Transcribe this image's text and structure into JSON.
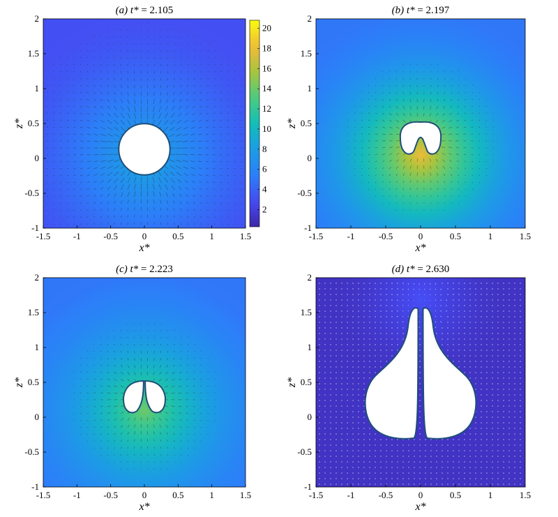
{
  "chart_data": [
    {
      "type": "heatmap",
      "title": "(a) t* = 2.105",
      "title_parts": {
        "tag": "(a) ",
        "var": "t*",
        "eq": " = 2.105"
      },
      "xlabel": "x*",
      "ylabel": "z*",
      "xlim": [
        -1.5,
        1.5
      ],
      "ylim": [
        -1,
        2
      ],
      "xticks": [
        "-1.5",
        "-1",
        "-0.5",
        "0",
        "0.5",
        "1",
        "1.5"
      ],
      "yticks": [
        "-1",
        "-0.5",
        "0",
        "0.5",
        "1",
        "1.5",
        "2"
      ],
      "field": {
        "center": [
          0,
          0
        ],
        "peak": 9,
        "background": 3
      },
      "bubble": {
        "shape": "circle",
        "center": [
          0,
          0.13
        ],
        "radius": 0.38
      },
      "vectors": "inward, dark",
      "colorbar": {
        "min": 0.3,
        "max": 20.8,
        "ticks": [
          "2",
          "4",
          "6",
          "8",
          "10",
          "12",
          "14",
          "16",
          "18",
          "20"
        ]
      }
    },
    {
      "type": "heatmap",
      "title": "(b) t* = 2.197",
      "title_parts": {
        "tag": "(b) ",
        "var": "t*",
        "eq": " = 2.197"
      },
      "xlabel": "x*",
      "ylabel": "z*",
      "xlim": [
        -1.5,
        1.5
      ],
      "ylim": [
        -1,
        2
      ],
      "xticks": [
        "-1.5",
        "-1",
        "-0.5",
        "0",
        "0.5",
        "1",
        "1.5"
      ],
      "yticks": [
        "-1",
        "-0.5",
        "0",
        "0.5",
        "1",
        "1.5",
        "2"
      ],
      "field": {
        "center": [
          0,
          0.05
        ],
        "peak": 18,
        "background": 5
      },
      "bubble": {
        "shape": "kidney",
        "center": [
          0,
          0.28
        ],
        "width": 0.58,
        "height": 0.44,
        "jet_tip": 0.3
      },
      "vectors": "small, near jet",
      "colorbar": null
    },
    {
      "type": "heatmap",
      "title": "(c) t* = 2.223",
      "title_parts": {
        "tag": "(c) ",
        "var": "t*",
        "eq": " = 2.223"
      },
      "xlabel": "x*",
      "ylabel": "z*",
      "xlim": [
        -1.5,
        1.5
      ],
      "ylim": [
        -1,
        2
      ],
      "xticks": [
        "-1.5",
        "-1",
        "-0.5",
        "0",
        "0.5",
        "1",
        "1.5"
      ],
      "yticks": [
        "-1",
        "-0.5",
        "0",
        "0.5",
        "1",
        "1.5",
        "2"
      ],
      "field": {
        "center": [
          0,
          0.1
        ],
        "peak": 14,
        "background": 5
      },
      "bubble": {
        "shape": "split",
        "center": [
          0,
          0.28
        ],
        "width": 0.62,
        "height": 0.44,
        "jet_tip": 0.52
      },
      "vectors": "small, near jet",
      "colorbar": null
    },
    {
      "type": "heatmap",
      "title": "(d) t* = 2.630",
      "title_parts": {
        "tag": "(d) ",
        "var": "t*",
        "eq": " = 2.630"
      },
      "xlabel": "x*",
      "ylabel": "z*",
      "xlim": [
        -1.5,
        1.5
      ],
      "ylim": [
        -1,
        2
      ],
      "xticks": [
        "-1.5",
        "-1",
        "-0.5",
        "0",
        "0.5",
        "1",
        "1.5"
      ],
      "yticks": [
        "-1",
        "-0.5",
        "0",
        "0.5",
        "1",
        "1.5",
        "2"
      ],
      "field": {
        "center": [
          0,
          1.7
        ],
        "peak": 3,
        "background": 1.2
      },
      "bubble": {
        "shape": "twin-lobes",
        "top": 1.55,
        "bottom": -0.32,
        "x_extent": 0.82
      },
      "vectors": "dense, white",
      "colorbar": null
    }
  ],
  "colors": {
    "viridis_low": "#3e26a8",
    "viridis_mid": "#13beb8",
    "viridis_high": "#f9fb0e",
    "bubble_outline": "#1f4e79",
    "bubble_fill": "#ffffff"
  }
}
